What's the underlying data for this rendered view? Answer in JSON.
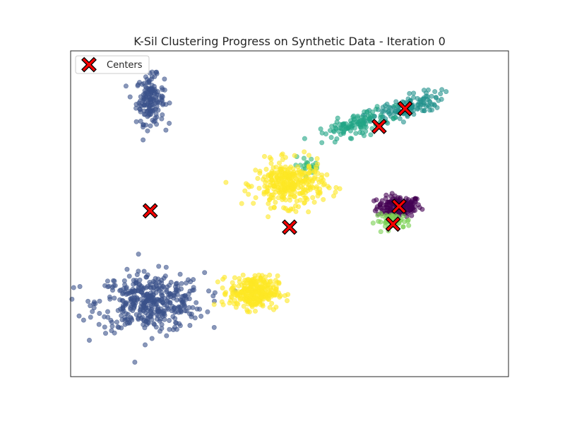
{
  "chart_data": {
    "type": "scatter",
    "title": "K-Sil Clustering Progress on Synthetic Data - Iteration 0",
    "xlabel": "",
    "ylabel": "",
    "xlim": [
      -11,
      11
    ],
    "ylim": [
      -11,
      11
    ],
    "grid": false,
    "axis_ticks": false,
    "legend": {
      "position": "top-left",
      "entries": [
        {
          "label": "Centers",
          "marker": "X",
          "color": "#ff0000"
        }
      ]
    },
    "point_alpha": 0.6,
    "point_groups": [
      {
        "cluster": 0,
        "color": "#440154",
        "center": [
          5.5,
          0.5
        ],
        "spread": [
          0.55,
          0.35
        ],
        "count": 170
      },
      {
        "cluster": 1,
        "color": "#3b528b",
        "center": [
          -7,
          7.7
        ],
        "spread": [
          0.35,
          0.8
        ],
        "count": 160
      },
      {
        "cluster": 1,
        "color": "#3b528b",
        "center": [
          -7,
          -6
        ],
        "spread": [
          1.35,
          1.0
        ],
        "count": 420
      },
      {
        "cluster": 2,
        "color": "#21918c",
        "center": [
          5.8,
          7.1
        ],
        "spread": [
          1.0,
          0.35
        ],
        "count": 130,
        "tilt": 0.45
      },
      {
        "cluster": 3,
        "color": "#21a585",
        "center": [
          3.3,
          6.0
        ],
        "spread": [
          0.9,
          0.35
        ],
        "count": 110,
        "tilt": 0.4
      },
      {
        "cluster": 3,
        "color": "#35b779",
        "center": [
          1.0,
          3.3
        ],
        "spread": [
          0.4,
          0.25
        ],
        "count": 22
      },
      {
        "cluster": 4,
        "color": "#7ad151",
        "center": [
          5.2,
          -0.5
        ],
        "spread": [
          0.45,
          0.25
        ],
        "count": 50
      },
      {
        "cluster": 5,
        "color": "#fde725",
        "center": [
          0,
          2.0
        ],
        "spread": [
          0.85,
          0.75
        ],
        "count": 330
      },
      {
        "cluster": 5,
        "color": "#fde725",
        "center": [
          -1.8,
          -5.3
        ],
        "spread": [
          0.6,
          0.55
        ],
        "count": 300
      }
    ],
    "centers": {
      "x": [
        -7.0,
        0.0,
        4.5,
        5.8,
        5.2,
        5.5
      ],
      "y": [
        0.2,
        -0.9,
        5.9,
        7.1,
        -0.7,
        0.5
      ]
    }
  }
}
